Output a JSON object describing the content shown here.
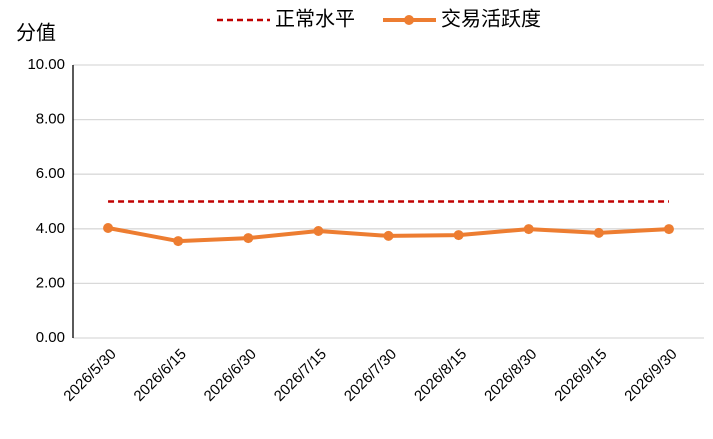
{
  "chart_data": {
    "type": "line",
    "y_label": "分值",
    "categories": [
      "2026/5/30",
      "2026/6/15",
      "2026/6/30",
      "2026/7/15",
      "2026/7/30",
      "2026/8/15",
      "2026/8/30",
      "2026/9/15",
      "2026/9/30"
    ],
    "series": [
      {
        "name": "正常水平",
        "color": "#c00000",
        "line_style": "dashed",
        "marker": "none",
        "values": [
          5,
          5,
          5,
          5,
          5,
          5,
          5,
          5,
          5
        ]
      },
      {
        "name": "交易活跃度",
        "color": "#ed7d31",
        "line_style": "solid",
        "marker": "circle",
        "values": [
          4.03,
          3.55,
          3.66,
          3.92,
          3.74,
          3.77,
          3.99,
          3.85,
          3.99
        ]
      }
    ],
    "ylim": [
      0,
      10
    ],
    "yticks": [
      {
        "value": 0,
        "label": "0.00"
      },
      {
        "value": 2,
        "label": "2.00"
      },
      {
        "value": 4,
        "label": "4.00"
      },
      {
        "value": 6,
        "label": "6.00"
      },
      {
        "value": 8,
        "label": "8.00"
      },
      {
        "value": 10,
        "label": "10.00"
      }
    ],
    "grid": true,
    "legend": "top"
  }
}
